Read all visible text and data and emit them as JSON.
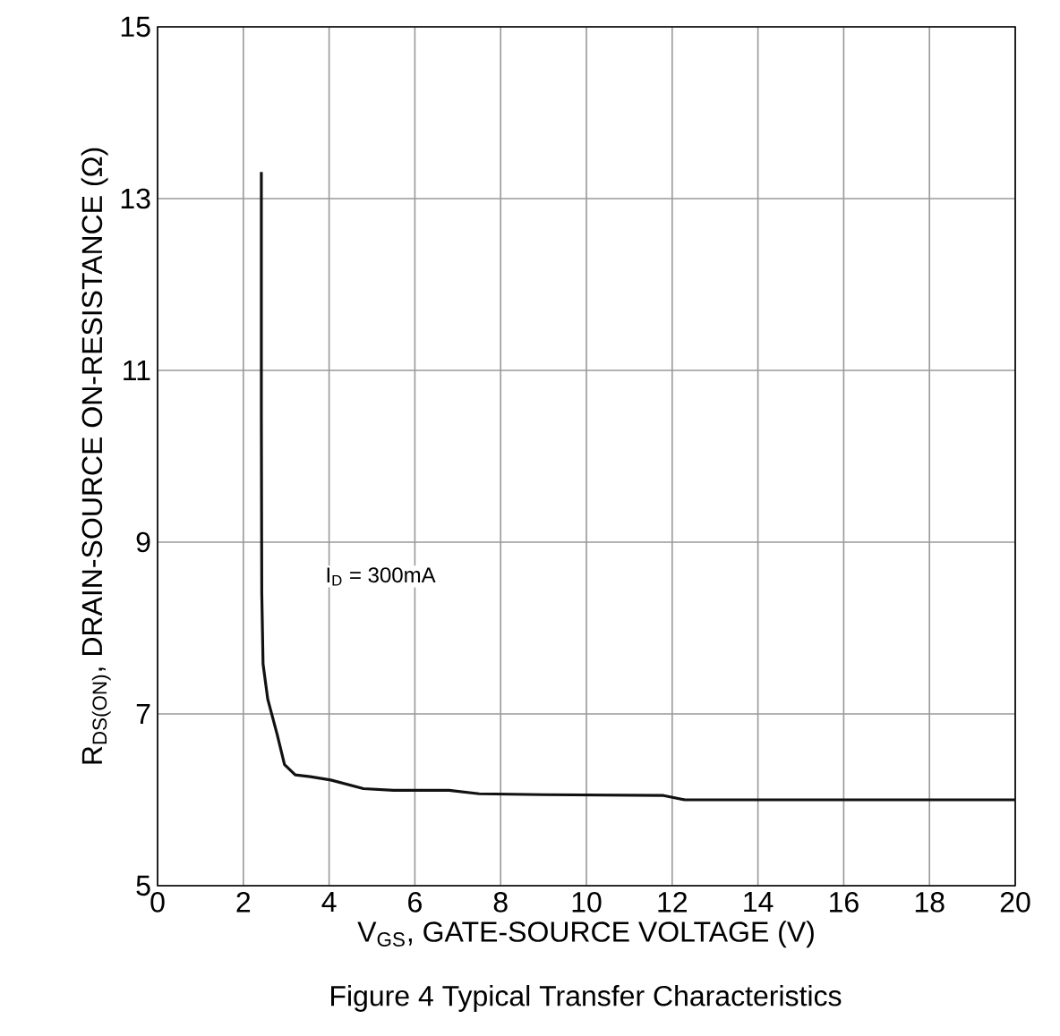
{
  "chart_data": {
    "type": "line",
    "title": "Figure 4 Typical Transfer Characteristics",
    "xlabel": "V$_{GS}$, GATE-SOURCE VOLTAGE (V)",
    "ylabel": "R$_{DS(ON)}$, DRAIN-SOURCE ON-RESISTANCE (Ω)",
    "annotations": [
      "I$_{D}$ = 300mA"
    ],
    "series": [
      {
        "color": "#111111",
        "x": [
          2.42,
          2.42,
          2.43,
          2.46,
          2.57,
          2.79,
          2.96,
          3.21,
          3.56,
          4.04,
          4.8,
          5.5,
          6.8,
          7.5,
          9,
          11.8,
          12.3,
          14,
          16,
          18,
          20
        ],
        "values": [
          13.31,
          10.5,
          8.41,
          7.58,
          7.17,
          6.76,
          6.41,
          6.29,
          6.27,
          6.23,
          6.13,
          6.11,
          6.11,
          6.07,
          6.06,
          6.05,
          6.0,
          6.0,
          6.0,
          6.0,
          6.0
        ]
      }
    ],
    "xlim": [
      0,
      20
    ],
    "ylim": [
      5,
      15
    ],
    "xticks": [
      0,
      2,
      4,
      6,
      8,
      10,
      12,
      14,
      16,
      18,
      20
    ],
    "yticks": [
      5,
      7,
      9,
      11,
      13,
      15
    ],
    "grid": true,
    "marker": "none",
    "line_style": "solid"
  }
}
